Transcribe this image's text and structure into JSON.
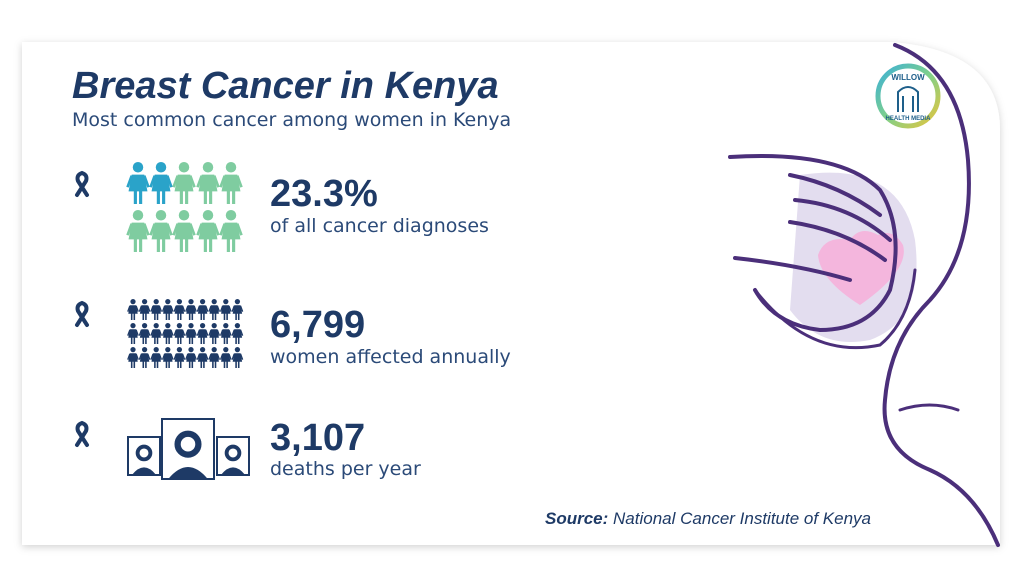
{
  "header": {
    "title": "Breast Cancer in Kenya",
    "subtitle": "Most common cancer among women in Kenya"
  },
  "logo": {
    "top": "WILLOW",
    "bottom": "HEALTH MEDIA"
  },
  "stats": [
    {
      "value": "23.3%",
      "label": "of all cancer diagnoses"
    },
    {
      "value": "6,799",
      "label": "women affected annually"
    },
    {
      "value": "3,107",
      "label": "deaths per year"
    }
  ],
  "source": {
    "prefix": "Source:",
    "text": "National Cancer Institute of Kenya"
  }
}
